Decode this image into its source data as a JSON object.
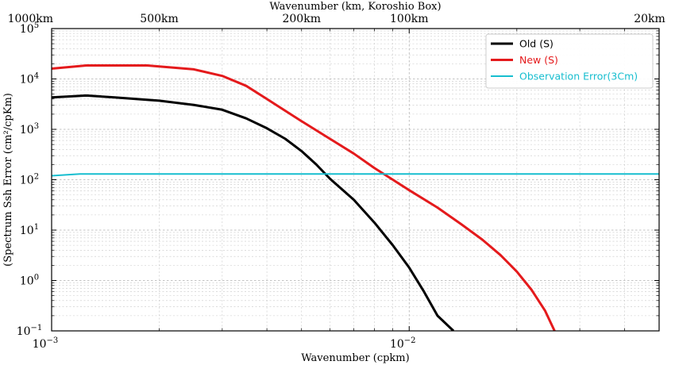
{
  "chart_data": {
    "type": "line",
    "title": "",
    "xlabel": "Wavenumber (cpkm)",
    "ylabel": "(Spectrum Ssh Error (cm²/cpKm)",
    "top_axis_label": "Wavenumber (km, Koroshio Box)",
    "x_scale": "log",
    "y_scale": "log",
    "xlim": [
      0.001,
      0.05
    ],
    "ylim": [
      0.1,
      100000
    ],
    "grid": true,
    "legend_position": "top-right",
    "x_ticks": [
      {
        "value": 0.001,
        "base": "10",
        "exp": "−3"
      },
      {
        "value": 0.01,
        "base": "10",
        "exp": "−2"
      }
    ],
    "y_ticks": [
      {
        "value": 0.1,
        "base": "10",
        "exp": "−1"
      },
      {
        "value": 1,
        "base": "10",
        "exp": "0"
      },
      {
        "value": 10,
        "base": "10",
        "exp": "1"
      },
      {
        "value": 100,
        "base": "10",
        "exp": "2"
      },
      {
        "value": 1000,
        "base": "10",
        "exp": "3"
      },
      {
        "value": 10000,
        "base": "10",
        "exp": "4"
      },
      {
        "value": 100000,
        "base": "10",
        "exp": "5"
      }
    ],
    "top_ticks": [
      {
        "label": "1000km",
        "value": 0.001
      },
      {
        "label": "500km",
        "value": 0.002
      },
      {
        "label": "200km",
        "value": 0.005
      },
      {
        "label": "100km",
        "value": 0.01
      },
      {
        "label": "20km",
        "value": 0.05
      }
    ],
    "series": [
      {
        "name": "Old (S)",
        "color": "#000000",
        "points": [
          [
            0.001,
            4300
          ],
          [
            0.00125,
            4700
          ],
          [
            0.0015,
            4300
          ],
          [
            0.002,
            3700
          ],
          [
            0.0025,
            3050
          ],
          [
            0.003,
            2450
          ],
          [
            0.0035,
            1650
          ],
          [
            0.004,
            1050
          ],
          [
            0.0045,
            650
          ],
          [
            0.005,
            370
          ],
          [
            0.0055,
            200
          ],
          [
            0.006,
            105
          ],
          [
            0.007,
            40
          ],
          [
            0.008,
            14
          ],
          [
            0.009,
            5
          ],
          [
            0.01,
            1.8
          ],
          [
            0.011,
            0.6
          ],
          [
            0.012,
            0.2
          ],
          [
            0.0133,
            0.1
          ]
        ]
      },
      {
        "name": "New (S)",
        "color": "#e41a1c",
        "points": [
          [
            0.001,
            16000
          ],
          [
            0.00125,
            18500
          ],
          [
            0.0015,
            18500
          ],
          [
            0.00185,
            18500
          ],
          [
            0.0025,
            15500
          ],
          [
            0.003,
            11500
          ],
          [
            0.0035,
            7300
          ],
          [
            0.004,
            4000
          ],
          [
            0.005,
            1450
          ],
          [
            0.006,
            650
          ],
          [
            0.007,
            330
          ],
          [
            0.008,
            170
          ],
          [
            0.009,
            100
          ],
          [
            0.01,
            62
          ],
          [
            0.012,
            28
          ],
          [
            0.014,
            13
          ],
          [
            0.016,
            6.5
          ],
          [
            0.018,
            3.2
          ],
          [
            0.02,
            1.5
          ],
          [
            0.022,
            0.65
          ],
          [
            0.024,
            0.25
          ],
          [
            0.0255,
            0.1
          ]
        ]
      },
      {
        "name": "Observation Error(3Cm)",
        "color": "#17becf",
        "points": [
          [
            0.001,
            120
          ],
          [
            0.0012,
            130
          ],
          [
            0.05,
            130
          ]
        ]
      }
    ]
  }
}
